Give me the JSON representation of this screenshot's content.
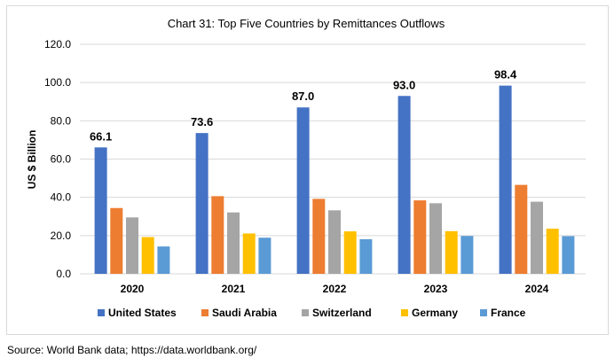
{
  "chart_data": {
    "type": "bar",
    "title": "Chart 31: Top Five Countries by Remittances Outflows",
    "ylabel": "US $ Billion",
    "xlabel": "",
    "ylim": [
      0,
      120
    ],
    "yticks": [
      "0.0",
      "20.0",
      "40.0",
      "60.0",
      "80.0",
      "100.0",
      "120.0"
    ],
    "grid": true,
    "legend_position": "bottom",
    "categories": [
      "2020",
      "2021",
      "2022",
      "2023",
      "2024"
    ],
    "series": [
      {
        "name": "United States",
        "color": "#4472c4",
        "values": [
          66.1,
          73.6,
          87.0,
          93.0,
          98.4
        ],
        "labels": [
          "66.1",
          "73.6",
          "87.0",
          "93.0",
          "98.4"
        ]
      },
      {
        "name": "Saudi Arabia",
        "color": "#ed7d31",
        "values": [
          34.4,
          40.6,
          39.2,
          38.4,
          46.5
        ]
      },
      {
        "name": "Switzerland",
        "color": "#a5a5a5",
        "values": [
          29.5,
          32.1,
          33.2,
          36.9,
          37.7
        ]
      },
      {
        "name": "Germany",
        "color": "#ffc000",
        "values": [
          19.2,
          21.1,
          22.2,
          22.3,
          23.6
        ]
      },
      {
        "name": "France",
        "color": "#5b9bd5",
        "values": [
          14.3,
          18.9,
          18.1,
          19.8,
          19.7
        ]
      }
    ]
  },
  "source": "Source: World Bank data; https://data.worldbank.org/"
}
